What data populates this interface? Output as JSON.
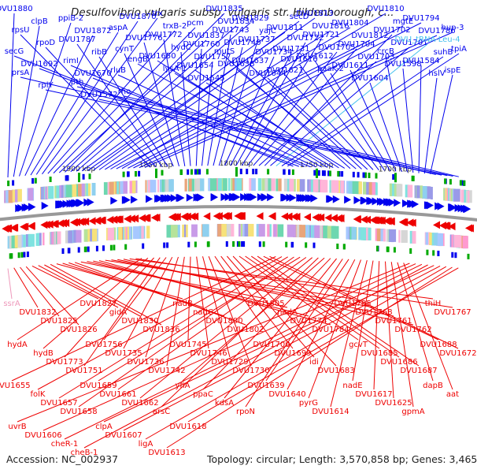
{
  "title": "Desulfovibrio vulgaris subsp. vulgaris str. Hildenborough, c...",
  "accession": "Accession: NC_002937",
  "summary": "Topology: circular; Length: 3,570,858 bp; Genes: 3,465",
  "colors": {
    "forward": "#0000ee",
    "reverse": "#ee0000",
    "trna": "#44c0ee",
    "rna": "#ee99bb",
    "backbone": "#999999",
    "tick": "#00aa00"
  },
  "ticks": [
    {
      "label": "1900 kbp"
    },
    {
      "label": "1850 kbp"
    },
    {
      "label": "1800 kbp"
    },
    {
      "label": "1750 kbp"
    },
    {
      "label": "1700 kbp"
    }
  ],
  "forward_labels": [
    "DVU1880",
    "clpB",
    "ppiB-2",
    "DVU1872",
    "aspA",
    "DVU1870",
    "trx",
    "trxB-2",
    "pcm",
    "DVU1837",
    "DVU1835",
    "DVU1834",
    "DVU1829",
    "yajC",
    "DVU1811",
    "secD",
    "DVU1813",
    "DVU1816",
    "DVU1804",
    "DVU1812",
    "DVU1810",
    "mgtE",
    "DVU1794",
    "DVU1786",
    "hup-3",
    "rpsU",
    "rpoD",
    "DVU1787",
    "ribB",
    "cynT",
    "DVU1776",
    "DVU1772",
    "hydC",
    "DVU1760",
    "DVU1757",
    "DVU1743",
    "DVU1740",
    "DVU1737",
    "DVU1734",
    "DVU1731",
    "DVU1722",
    "DVU1721",
    "DVU1705",
    "DVU1704",
    "DVU1703",
    "DVU1702",
    "DVU1701",
    "DVU_tRNA-Leu-4",
    "suhB",
    "tpiA",
    "secG",
    "DVU1692",
    "rimI",
    "DVU1670",
    "rluB",
    "engB",
    "DVU1650",
    "lysA-1",
    "DVU1654",
    "DVU1645",
    "mutS",
    "DVU1638",
    "DVU1637",
    "DVU1644",
    "DVU1621",
    "DVU1616",
    "DVU1612",
    "paaK-2",
    "DVU1611",
    "DVU1604",
    "crcB",
    "DVU1598",
    "DVU1584",
    "hslV",
    "ispE",
    "prsA",
    "rplY",
    "pth",
    "DVU1572",
    "rho"
  ],
  "reverse_labels": [
    "ssrA",
    "DVU1832",
    "DVU1825",
    "DVU1826",
    "DVU1827",
    "gidA",
    "DVU1830",
    "DVU1836",
    "nadB",
    "nadC",
    "DVU1800",
    "DVU1802",
    "DVU1805",
    "nadA",
    "DVU1774",
    "DVU1784",
    "DVU1785",
    "DVU1768",
    "DVU1761",
    "DVU1762",
    "thiH",
    "DVU1767",
    "hydA",
    "hydB",
    "DVU1773",
    "DVU1751",
    "DVU1756",
    "DVU1735",
    "DVU1736",
    "DVU1742",
    "DVU1745",
    "DVU1746",
    "DVU1729",
    "DVU1730",
    "DVU1700",
    "DVU1699",
    "idi",
    "DVU1683",
    "gcvT",
    "DVU1685",
    "DVU1686",
    "DVU1687",
    "DVU1688",
    "DVU1672",
    "DVU1655",
    "folK",
    "DVU1657",
    "DVU1658",
    "DVU1659",
    "DVU1661",
    "DVU1662",
    "arsC",
    "yfiA",
    "ppaC",
    "kdsA",
    "rpoN",
    "DVU1639",
    "DVU1640",
    "pyrG",
    "DVU1614",
    "nadE",
    "DVU1617",
    "DVU1625",
    "gpmA",
    "dapB",
    "aat",
    "uvrB",
    "DVU1606",
    "cheR-1",
    "cheB-1",
    "clpA",
    "DVU1607",
    "ligA",
    "DVU1613",
    "DVU1618"
  ]
}
